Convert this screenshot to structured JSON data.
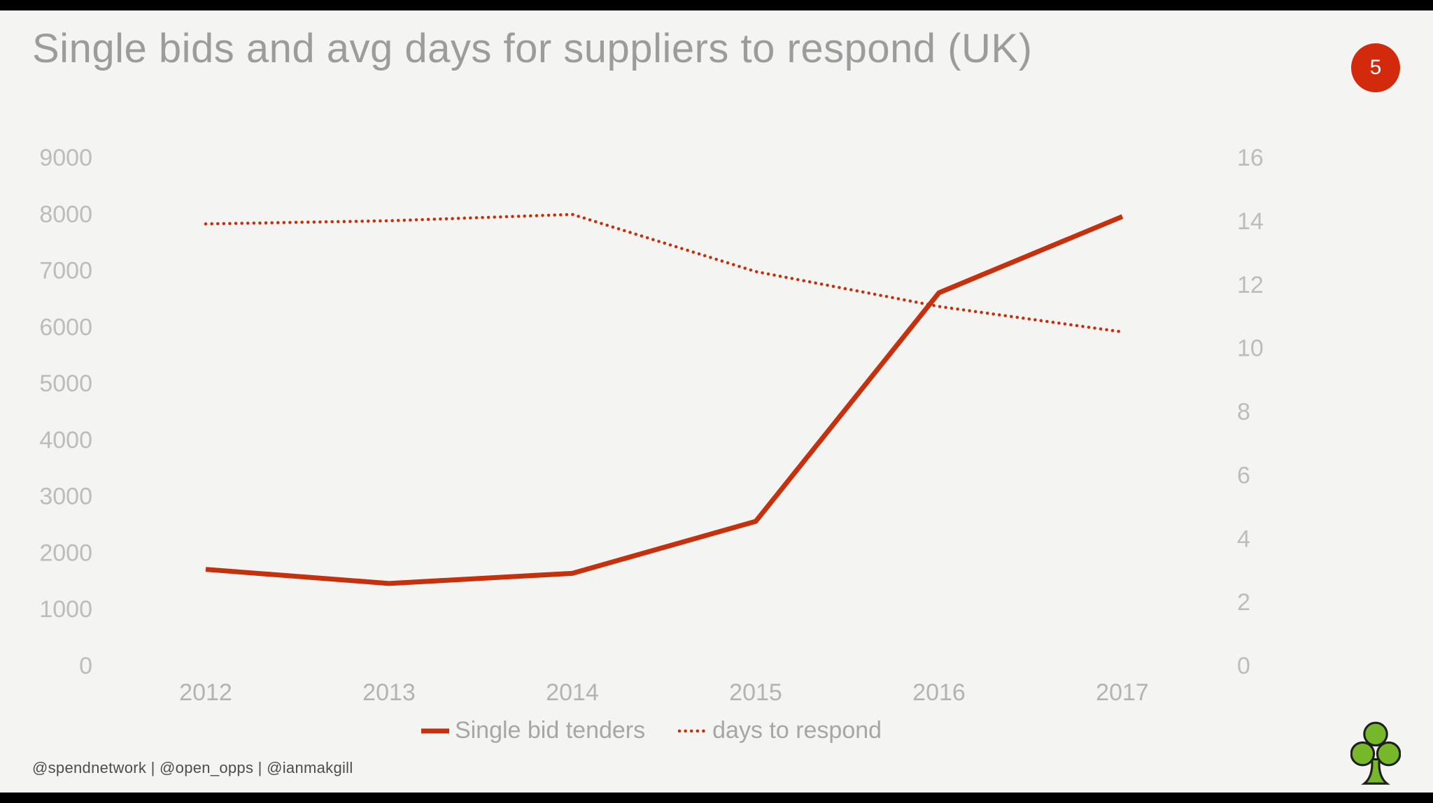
{
  "title": "Single bids and avg days for suppliers to respond (UK)",
  "page_number": "5",
  "credits": "@spendnetwork  |  @open_opps  |  @ianmakgill",
  "colors": {
    "accent_red": "#c5310d",
    "badge_red": "#d3290d",
    "logo_green": "#76b82a"
  },
  "chart_data": {
    "type": "line",
    "title": "Single bids and avg days for suppliers to respond (UK)",
    "x": [
      "2012",
      "2013",
      "2014",
      "2015",
      "2016",
      "2017"
    ],
    "series": [
      {
        "name": "Single bid tenders",
        "axis": "left",
        "style": "solid",
        "values": [
          1700,
          1450,
          1630,
          2550,
          6600,
          7950
        ]
      },
      {
        "name": "days to respond",
        "axis": "right",
        "style": "dotted",
        "values": [
          13.9,
          14.0,
          14.2,
          12.4,
          11.3,
          10.5
        ]
      }
    ],
    "left_axis": {
      "min": 0,
      "max": 9000,
      "step": 1000
    },
    "right_axis": {
      "min": 0,
      "max": 16,
      "step": 2
    },
    "grid": false,
    "legend_position": "bottom",
    "line_color": "#c5310d"
  }
}
